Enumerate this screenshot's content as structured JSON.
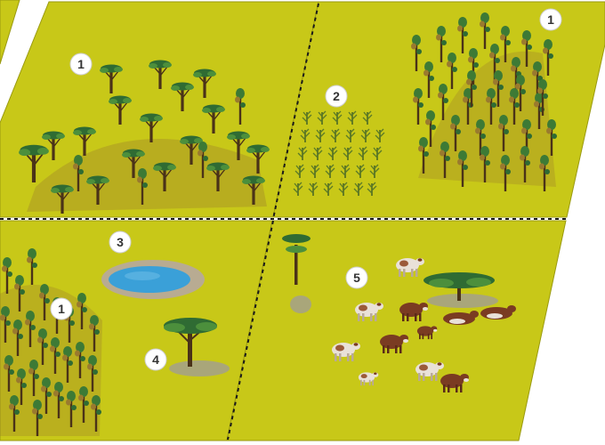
{
  "colors": {
    "field": "#c8c818",
    "field_stroke": "#9a9a10",
    "background": "#ffffff",
    "divider": "#1a1a1a",
    "canopy_dark": "#2f6b33",
    "canopy_light": "#4c8f3c",
    "trunk": "#4a3218",
    "dry_tree": "#9a7a2e",
    "water": "#3aa0d8",
    "water_rim": "#b8ab92",
    "shadow": "#a9a67a",
    "crop": "#4d6a22",
    "cattle_brown": "#7a3b22",
    "cattle_white": "#e9e1d8"
  },
  "markers": [
    {
      "label": "1",
      "zone": "forest-top-left"
    },
    {
      "label": "1",
      "zone": "forest-top-right"
    },
    {
      "label": "1",
      "zone": "forest-bottom-left"
    },
    {
      "label": "2",
      "zone": "crop-field"
    },
    {
      "label": "3",
      "zone": "water-pond"
    },
    {
      "label": "4",
      "zone": "lone-shade-tree"
    },
    {
      "label": "5",
      "zone": "cattle-pasture"
    }
  ]
}
